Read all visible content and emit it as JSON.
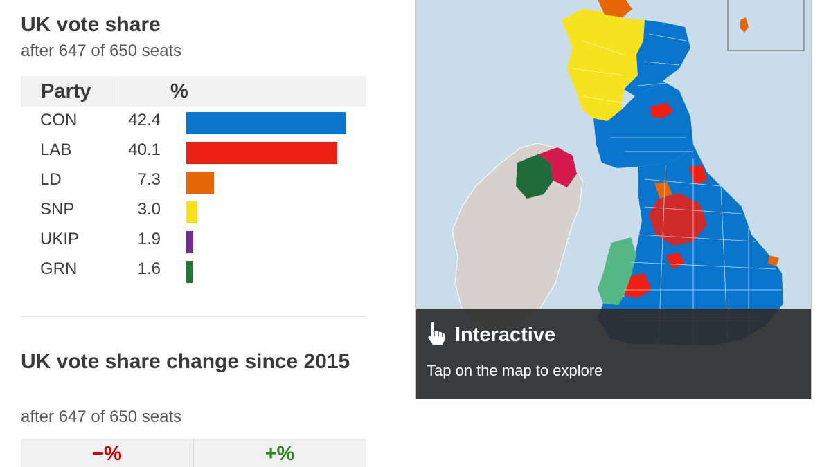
{
  "vote_share": {
    "title": "UK vote share",
    "subtitle": "after 647 of 650 seats",
    "col_party": "Party",
    "col_pct": "%",
    "max_value": 42.4,
    "rows": [
      {
        "party": "CON",
        "value": "42.4",
        "color": "#0a75cd"
      },
      {
        "party": "LAB",
        "value": "40.1",
        "color": "#ed2013"
      },
      {
        "party": "LD",
        "value": "7.3",
        "color": "#e66708"
      },
      {
        "party": "SNP",
        "value": "3.0",
        "color": "#f7e21e"
      },
      {
        "party": "UKIP",
        "value": "1.9",
        "color": "#702e8f"
      },
      {
        "party": "GRN",
        "value": "1.6",
        "color": "#1e7b32"
      }
    ]
  },
  "vote_change": {
    "title": "UK vote share change since 2015",
    "subtitle": "after 647 of 650 seats",
    "minus_label": "−%",
    "plus_label": "+%"
  },
  "map": {
    "overlay_title": "Interactive",
    "overlay_text": "Tap on the map to explore",
    "icon": "hand-pointer-icon",
    "colors": {
      "sea": "#c9dcea",
      "ireland": "#d6d1cd",
      "con": "#0a75cd",
      "lab": "#ed2013",
      "ld": "#e66708",
      "snp": "#f7e21e",
      "dup": "#d4194d",
      "sf": "#1f6b3a",
      "pc": "#55b686"
    }
  }
}
